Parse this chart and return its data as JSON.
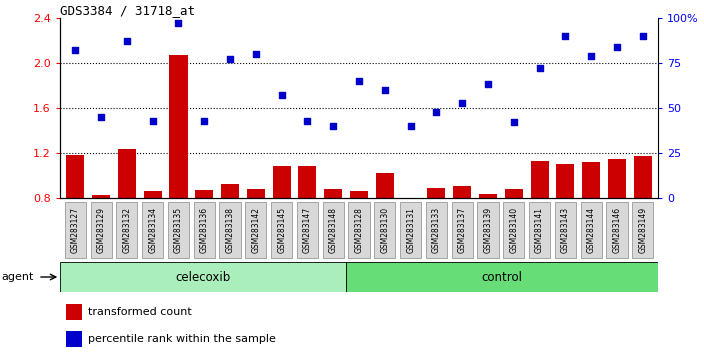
{
  "title": "GDS3384 / 31718_at",
  "samples": [
    "GSM283127",
    "GSM283129",
    "GSM283132",
    "GSM283134",
    "GSM283135",
    "GSM283136",
    "GSM283138",
    "GSM283142",
    "GSM283145",
    "GSM283147",
    "GSM283148",
    "GSM283128",
    "GSM283130",
    "GSM283131",
    "GSM283133",
    "GSM283137",
    "GSM283139",
    "GSM283140",
    "GSM283141",
    "GSM283143",
    "GSM283144",
    "GSM283146",
    "GSM283149"
  ],
  "transformed_count": [
    1.18,
    0.83,
    1.24,
    0.86,
    2.07,
    0.87,
    0.93,
    0.88,
    1.09,
    1.09,
    0.88,
    0.86,
    1.02,
    0.78,
    0.89,
    0.91,
    0.84,
    0.88,
    1.13,
    1.1,
    1.12,
    1.15,
    1.17
  ],
  "percentile_rank": [
    82,
    45,
    87,
    43,
    97,
    43,
    77,
    80,
    57,
    43,
    40,
    65,
    60,
    40,
    48,
    53,
    63,
    42,
    72,
    90,
    79,
    84,
    90
  ],
  "celecoxib_count": 11,
  "control_count": 12,
  "ylim_left": [
    0.8,
    2.4
  ],
  "ylim_right": [
    0,
    100
  ],
  "yticks_left": [
    0.8,
    1.2,
    1.6,
    2.0,
    2.4
  ],
  "yticks_right": [
    0,
    25,
    50,
    75,
    100
  ],
  "ytick_labels_right": [
    "0",
    "25",
    "50",
    "75",
    "100%"
  ],
  "bar_color": "#cc0000",
  "dot_color": "#0000cc",
  "celecoxib_color": "#aaeebb",
  "control_color": "#66dd77",
  "agent_label": "agent",
  "celecoxib_label": "celecoxib",
  "control_label": "control",
  "legend_bar_label": "transformed count",
  "legend_dot_label": "percentile rank within the sample",
  "plot_bg_color": "#ffffff",
  "xtick_bg_color": "#cccccc",
  "xtick_box_color": "#bbbbbb"
}
